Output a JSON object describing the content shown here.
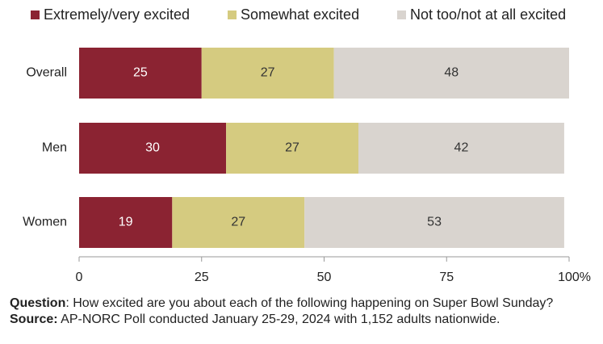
{
  "chart_data": {
    "type": "bar",
    "orientation": "horizontal",
    "stacked": true,
    "categories": [
      "Overall",
      "Men",
      "Women"
    ],
    "series": [
      {
        "name": "Extremely/very excited",
        "values": [
          25,
          30,
          19
        ],
        "color": "#8b2332"
      },
      {
        "name": "Somewhat excited",
        "values": [
          27,
          27,
          27
        ],
        "color": "#d5cb80"
      },
      {
        "name": "Not too/not at all excited",
        "values": [
          48,
          42,
          53
        ],
        "color": "#d9d4cf"
      }
    ],
    "xlim": [
      0,
      100
    ],
    "xticks": [
      {
        "value": 0,
        "label": "0"
      },
      {
        "value": 25,
        "label": "25"
      },
      {
        "value": 50,
        "label": "50"
      },
      {
        "value": 75,
        "label": "75"
      },
      {
        "value": 100,
        "label": "100%"
      }
    ],
    "legend_position": "top",
    "grid": false,
    "data_labels": true
  },
  "footer": {
    "question_label": "Question",
    "question_text": ": How excited are you about each of the following happening on Super Bowl Sunday?",
    "source_label": "Source:",
    "source_text": " AP-NORC Poll conducted January 25-29, 2024 with 1,152 adults nationwide."
  }
}
